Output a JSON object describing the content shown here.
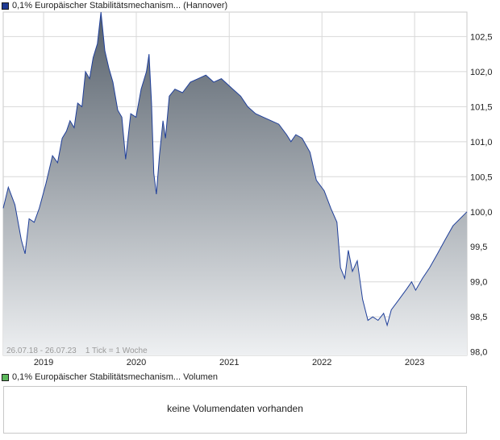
{
  "price_legend": {
    "label": "0,1% Europäischer Stabilitätsmechanism... (Hannover)",
    "color": "#1f3a93"
  },
  "volume_legend": {
    "label": "0,1% Europäischer Stabilitätsmechanism... Volumen",
    "color": "#5cb85c"
  },
  "info_text": "26.07.18 - 26.07.23    1 Tick = 1 Woche",
  "volume_message": "keine Volumendaten vorhanden",
  "colors": {
    "line": "#1f3f9a",
    "fill_top": "#56606b",
    "fill_bottom": "#eef0f2",
    "grid": "#d8d8d8"
  },
  "chart_data": {
    "type": "area",
    "x_ticks": [
      "2019",
      "2020",
      "2021",
      "2022",
      "2023"
    ],
    "y_ticks": [
      "98,0",
      "98,5",
      "99,0",
      "99,5",
      "100,0",
      "100,5",
      "101,0",
      "101,5",
      "102,0",
      "102,5"
    ],
    "ylim": [
      97.95,
      102.85
    ],
    "xlim": [
      "2018-07-26",
      "2023-07-26"
    ],
    "grid": true,
    "series": [
      {
        "values": [
          [
            "2018-07-26",
            100.05
          ],
          [
            "2018-08-15",
            100.35
          ],
          [
            "2018-09-10",
            100.1
          ],
          [
            "2018-10-05",
            99.6
          ],
          [
            "2018-10-20",
            99.4
          ],
          [
            "2018-11-05",
            99.9
          ],
          [
            "2018-11-25",
            99.85
          ],
          [
            "2018-12-15",
            100.05
          ],
          [
            "2019-01-10",
            100.4
          ],
          [
            "2019-02-05",
            100.8
          ],
          [
            "2019-02-25",
            100.7
          ],
          [
            "2019-03-15",
            101.05
          ],
          [
            "2019-04-01",
            101.15
          ],
          [
            "2019-04-15",
            101.3
          ],
          [
            "2019-05-01",
            101.2
          ],
          [
            "2019-05-15",
            101.55
          ],
          [
            "2019-06-01",
            101.5
          ],
          [
            "2019-06-15",
            102.0
          ],
          [
            "2019-07-01",
            101.9
          ],
          [
            "2019-07-15",
            102.2
          ],
          [
            "2019-08-01",
            102.4
          ],
          [
            "2019-08-15",
            102.85
          ],
          [
            "2019-08-30",
            102.3
          ],
          [
            "2019-09-15",
            102.05
          ],
          [
            "2019-10-01",
            101.85
          ],
          [
            "2019-10-20",
            101.45
          ],
          [
            "2019-11-05",
            101.35
          ],
          [
            "2019-11-20",
            100.75
          ],
          [
            "2019-12-10",
            101.4
          ],
          [
            "2019-12-31",
            101.35
          ],
          [
            "2020-01-20",
            101.75
          ],
          [
            "2020-02-10",
            102.0
          ],
          [
            "2020-02-20",
            102.25
          ],
          [
            "2020-03-01",
            101.55
          ],
          [
            "2020-03-10",
            100.55
          ],
          [
            "2020-03-20",
            100.25
          ],
          [
            "2020-04-01",
            100.8
          ],
          [
            "2020-04-15",
            101.3
          ],
          [
            "2020-04-25",
            101.05
          ],
          [
            "2020-05-10",
            101.65
          ],
          [
            "2020-06-01",
            101.75
          ],
          [
            "2020-07-01",
            101.7
          ],
          [
            "2020-08-01",
            101.85
          ],
          [
            "2020-09-01",
            101.9
          ],
          [
            "2020-10-01",
            101.95
          ],
          [
            "2020-11-01",
            101.85
          ],
          [
            "2020-12-01",
            101.9
          ],
          [
            "2021-01-15",
            101.75
          ],
          [
            "2021-02-15",
            101.65
          ],
          [
            "2021-03-15",
            101.5
          ],
          [
            "2021-04-15",
            101.4
          ],
          [
            "2021-05-15",
            101.35
          ],
          [
            "2021-06-15",
            101.3
          ],
          [
            "2021-07-15",
            101.25
          ],
          [
            "2021-08-15",
            101.1
          ],
          [
            "2021-09-01",
            101.0
          ],
          [
            "2021-09-20",
            101.1
          ],
          [
            "2021-10-15",
            101.05
          ],
          [
            "2021-11-15",
            100.85
          ],
          [
            "2021-12-10",
            100.45
          ],
          [
            "2022-01-10",
            100.3
          ],
          [
            "2022-02-05",
            100.05
          ],
          [
            "2022-03-01",
            99.85
          ],
          [
            "2022-03-15",
            99.2
          ],
          [
            "2022-04-01",
            99.05
          ],
          [
            "2022-04-15",
            99.45
          ],
          [
            "2022-05-01",
            99.15
          ],
          [
            "2022-05-20",
            99.3
          ],
          [
            "2022-06-10",
            98.75
          ],
          [
            "2022-07-01",
            98.45
          ],
          [
            "2022-07-20",
            98.5
          ],
          [
            "2022-08-10",
            98.45
          ],
          [
            "2022-09-01",
            98.55
          ],
          [
            "2022-09-15",
            98.38
          ],
          [
            "2022-10-01",
            98.6
          ],
          [
            "2022-11-01",
            98.75
          ],
          [
            "2022-12-01",
            98.9
          ],
          [
            "2022-12-20",
            99.0
          ],
          [
            "2023-01-05",
            98.88
          ],
          [
            "2023-02-01",
            99.05
          ],
          [
            "2023-03-01",
            99.2
          ],
          [
            "2023-04-01",
            99.4
          ],
          [
            "2023-05-01",
            99.6
          ],
          [
            "2023-06-01",
            99.8
          ],
          [
            "2023-07-26",
            100.0
          ]
        ]
      }
    ]
  }
}
